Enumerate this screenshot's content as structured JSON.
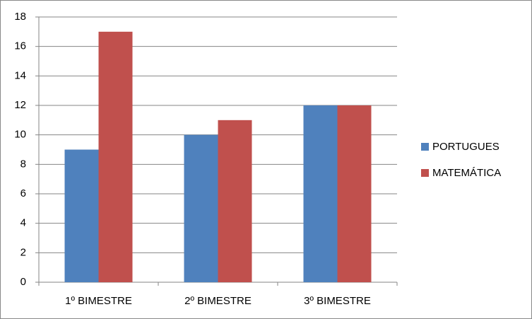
{
  "chart_data": {
    "type": "bar",
    "categories": [
      "1º BIMESTRE",
      "2º BIMESTRE",
      "3º BIMESTRE"
    ],
    "series": [
      {
        "name": "PORTUGUES",
        "color": "#4f81bd",
        "values": [
          9,
          10,
          12
        ]
      },
      {
        "name": "MATEMÁTICA",
        "color": "#c0504d",
        "values": [
          17,
          11,
          12
        ]
      }
    ],
    "ylim": [
      0,
      18
    ],
    "yticks": [
      0,
      2,
      4,
      6,
      8,
      10,
      12,
      14,
      16,
      18
    ],
    "grid": true,
    "legend": "right"
  }
}
